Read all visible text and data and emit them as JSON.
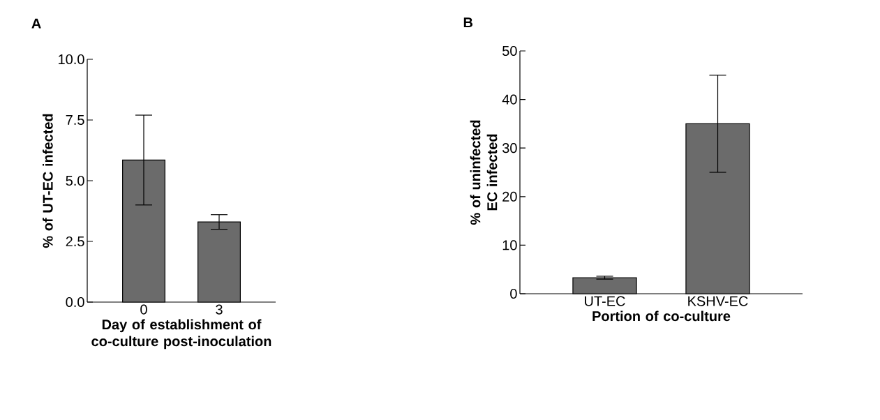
{
  "chart_data": [
    {
      "type": "bar",
      "title": "A",
      "xlabel": "Day of establishment of co-culture post-inoculation",
      "ylabel": "% of UT-EC infected",
      "categories": [
        "0",
        "3"
      ],
      "values": [
        5.85,
        3.3
      ],
      "errors": [
        1.85,
        0.3
      ],
      "color": "#6b6b6b",
      "ylim": [
        0,
        10
      ],
      "yticks": [
        {
          "value": 0,
          "label": "0.0"
        },
        {
          "value": 2.5,
          "label": "2.5"
        },
        {
          "value": 5,
          "label": "5.0"
        },
        {
          "value": 7.5,
          "label": "7.5"
        },
        {
          "value": 10,
          "label": "10.0"
        }
      ],
      "grid": false
    },
    {
      "type": "bar",
      "title": "B",
      "xlabel": "Portion of co-culture",
      "ylabel": "% of uninfected EC infected",
      "categories": [
        "UT-EC",
        "KSHV-EC"
      ],
      "values": [
        3.3,
        35
      ],
      "errors": [
        0.3,
        10
      ],
      "color": "#6b6b6b",
      "ylim": [
        0,
        50
      ],
      "yticks": [
        0,
        10,
        20,
        30,
        40,
        50
      ],
      "grid": false
    }
  ]
}
